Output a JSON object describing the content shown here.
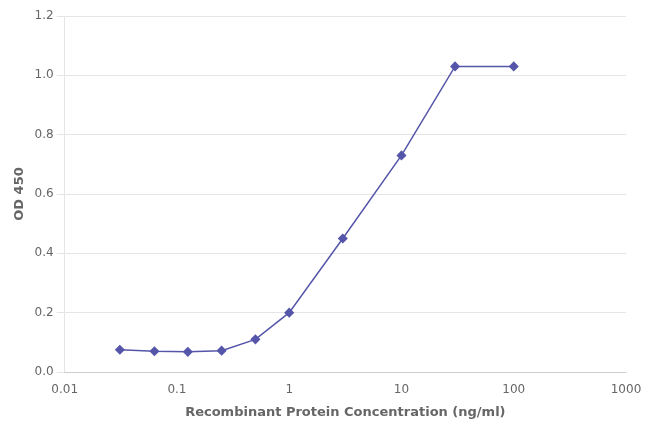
{
  "chart_data": {
    "type": "line",
    "x": [
      0.031,
      0.063,
      0.125,
      0.25,
      0.5,
      1.0,
      3.0,
      10.0,
      30.0,
      100.0
    ],
    "series": [
      {
        "color": "#5555aa",
        "marker": "diamond",
        "values": [
          0.075,
          0.07,
          0.068,
          0.072,
          0.11,
          0.2,
          0.45,
          0.73,
          1.03,
          1.03
        ]
      }
    ],
    "x_label": "Recombinant Protein Concentration (ng/ml)",
    "y_label": "OD 450",
    "log": "x",
    "xlim": [
      0.01,
      1000
    ],
    "xticks": [
      0.01,
      0.1,
      1,
      10,
      100,
      1000
    ],
    "ylim": [
      0,
      1.2
    ],
    "yticks": [
      {
        "value": 0,
        "label": "0.0"
      },
      0.2,
      0.4,
      0.6,
      0.8,
      {
        "value": 1.0,
        "label": "1.0"
      },
      1.2
    ],
    "grid": "y"
  }
}
